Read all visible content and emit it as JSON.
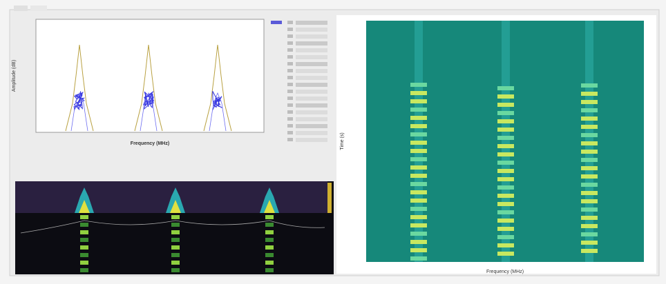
{
  "plot": {
    "x_label": "Frequency (MHz)",
    "y_label": "Amplitude (dB)"
  },
  "waterfall": {
    "x_label": "Frequency (MHz)",
    "y_label": "Time (s)"
  }
}
